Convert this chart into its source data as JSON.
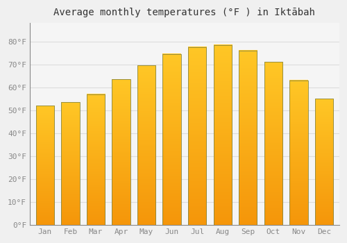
{
  "title": "Average monthly temperatures (°F ) in Iktābah",
  "months": [
    "Jan",
    "Feb",
    "Mar",
    "Apr",
    "May",
    "Jun",
    "Jul",
    "Aug",
    "Sep",
    "Oct",
    "Nov",
    "Dec"
  ],
  "values": [
    52,
    53.5,
    57,
    63.5,
    69.5,
    74.5,
    77.5,
    78.5,
    76,
    71,
    63,
    55
  ],
  "bar_color_top": "#FFC726",
  "bar_color_bottom": "#F5960A",
  "bar_edge_color": "#888844",
  "background_color": "#F0F0F0",
  "plot_bg_color": "#F5F5F5",
  "grid_color": "#DDDDDD",
  "tick_label_color": "#888888",
  "title_color": "#333333",
  "ylim": [
    0,
    88
  ],
  "yticks": [
    0,
    10,
    20,
    30,
    40,
    50,
    60,
    70,
    80
  ],
  "title_fontsize": 10,
  "tick_fontsize": 8,
  "bar_width": 0.72
}
